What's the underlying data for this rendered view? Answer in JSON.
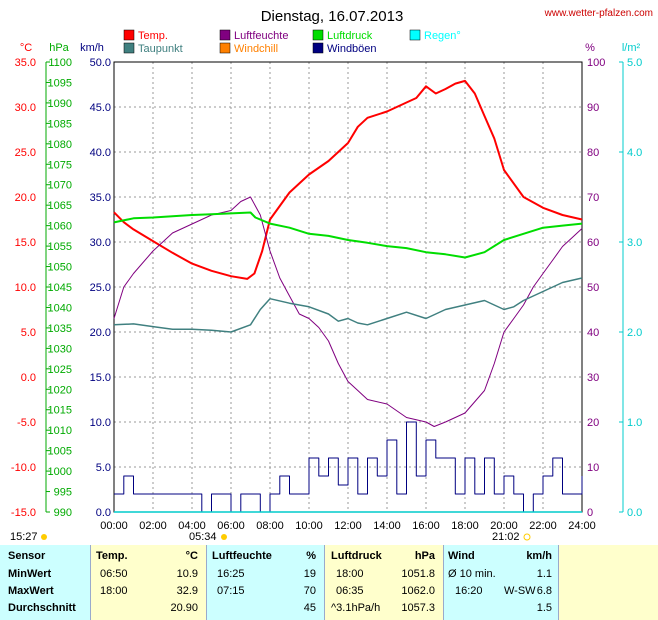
{
  "header": {
    "title": "Dienstag, 16.07.2013",
    "site": "www.wetter-pfalzen.com"
  },
  "axis_units": {
    "temp": "°C",
    "pressure": "hPa",
    "wind": "km/h",
    "humidity": "%",
    "rain": "l/m²"
  },
  "legend": [
    {
      "label": "Temp.",
      "color": "#ff0000"
    },
    {
      "label": "Luftfeuchte",
      "color": "#800080"
    },
    {
      "label": "Luftdruck",
      "color": "#00dd00"
    },
    {
      "label": "Regen°",
      "color": "#00ffff"
    },
    {
      "label": "Taupunkt",
      "color": "#408080"
    },
    {
      "label": "Windchill",
      "color": "#ff8000"
    },
    {
      "label": "Windböen",
      "color": "#000080"
    }
  ],
  "colors": {
    "temp": "#ff0000",
    "pressure": "#00dd00",
    "wind": "#000080",
    "humidity": "#800080",
    "dewpoint": "#408080",
    "rain": "#00cccc",
    "sun": "#ffcc00"
  },
  "sun": {
    "sunrise": "05:34",
    "sunset": "21:02",
    "day_length": "15:27"
  },
  "chart_data": {
    "type": "line",
    "title": "Dienstag, 16.07.2013",
    "grid": true,
    "legend_position": "top",
    "x_ticks": [
      "00:00",
      "02:00",
      "04:00",
      "06:00",
      "08:00",
      "10:00",
      "12:00",
      "14:00",
      "16:00",
      "18:00",
      "20:00",
      "22:00",
      "24:00"
    ],
    "xlim": [
      0,
      24
    ],
    "axes": {
      "temp": {
        "unit": "°C",
        "range": [
          -15,
          35
        ],
        "ticks": [
          "35.0",
          "30.0",
          "25.0",
          "20.0",
          "15.0",
          "10.0",
          "5.0",
          "0.0",
          "-5.0",
          "-10.0",
          "-15.0"
        ]
      },
      "pressure": {
        "unit": "hPa",
        "range": [
          990,
          1100
        ],
        "ticks": [
          "1100",
          "1095",
          "1090",
          "1085",
          "1080",
          "1075",
          "1070",
          "1065",
          "1060",
          "1055",
          "1050",
          "1045",
          "1040",
          "1035",
          "1030",
          "1025",
          "1020",
          "1015",
          "1010",
          "1005",
          "1000",
          "995",
          "990"
        ]
      },
      "wind": {
        "unit": "km/h",
        "range": [
          0,
          50
        ],
        "ticks": [
          "50.0",
          "45.0",
          "40.0",
          "35.0",
          "30.0",
          "25.0",
          "20.0",
          "15.0",
          "10.0",
          "5.0",
          "0.0"
        ]
      },
      "humidity": {
        "unit": "%",
        "range": [
          0,
          100
        ],
        "ticks": [
          "100",
          "90",
          "80",
          "70",
          "60",
          "50",
          "40",
          "30",
          "20",
          "10",
          "0"
        ]
      },
      "rain": {
        "unit": "l/m²",
        "range": [
          0,
          5
        ],
        "ticks": [
          "5.0",
          "4.0",
          "3.0",
          "2.0",
          "1.0",
          "0.0"
        ]
      }
    },
    "series": [
      {
        "name": "Temp.",
        "axis": "temp",
        "x": [
          0,
          0.5,
          1,
          2,
          3,
          4,
          5,
          6,
          6.83,
          7.2,
          7.6,
          8,
          9,
          10,
          11,
          12,
          12.5,
          13,
          14,
          15,
          15.5,
          16,
          16.5,
          17,
          17.5,
          18,
          18.5,
          19,
          19.5,
          20,
          21,
          22,
          23,
          24
        ],
        "y": [
          18.3,
          17.2,
          16.4,
          15.1,
          13.8,
          12.6,
          11.8,
          11.2,
          10.9,
          11.5,
          14.0,
          17.5,
          20.5,
          22.5,
          24.0,
          26.0,
          27.8,
          28.8,
          29.5,
          30.5,
          31.0,
          32.3,
          31.5,
          32.0,
          32.6,
          32.9,
          31.5,
          29.0,
          26.5,
          23.0,
          20.0,
          18.8,
          18.0,
          17.5
        ]
      },
      {
        "name": "Luftfeuchte",
        "axis": "humidity",
        "x": [
          0,
          0.5,
          1,
          2,
          3,
          4,
          5,
          6,
          6.5,
          7,
          7.5,
          8,
          8.5,
          9,
          9.5,
          10,
          10.5,
          11,
          11.5,
          12,
          12.5,
          13,
          14,
          15,
          16,
          16.42,
          17,
          18,
          19,
          19.5,
          20,
          20.5,
          21,
          21.5,
          22,
          22.5,
          23,
          23.5,
          24
        ],
        "y": [
          43,
          50,
          53,
          58,
          62,
          64,
          66,
          67,
          69,
          70,
          66,
          58,
          52,
          48,
          44,
          43,
          41,
          38,
          33,
          29,
          27,
          25,
          24,
          21,
          20,
          19,
          20,
          22,
          27,
          33,
          40,
          43,
          46,
          50,
          53,
          56,
          59,
          61,
          63
        ]
      },
      {
        "name": "Luftdruck",
        "axis": "pressure",
        "x": [
          0,
          1,
          2,
          3,
          4,
          5,
          6,
          7,
          7.25,
          8,
          9,
          10,
          11,
          12,
          13,
          14,
          15,
          16,
          17,
          18,
          19,
          20,
          21,
          22,
          23,
          24
        ],
        "y": [
          1060.8,
          1061.8,
          1062.0,
          1062.3,
          1062.6,
          1062.8,
          1063.0,
          1063.2,
          1062.0,
          1060.5,
          1059.5,
          1058.0,
          1057.5,
          1056.5,
          1055.8,
          1055.0,
          1054.5,
          1053.5,
          1053.0,
          1052.2,
          1053.5,
          1056.5,
          1058.0,
          1059.5,
          1060.0,
          1060.5
        ]
      },
      {
        "name": "Taupunkt",
        "axis": "temp",
        "x": [
          0,
          1,
          2,
          3,
          4,
          5,
          6,
          7,
          7.5,
          8,
          9,
          10,
          11,
          11.5,
          12,
          12.5,
          13,
          14,
          15,
          16,
          17,
          18,
          19,
          20,
          20.5,
          21,
          22,
          23,
          24
        ],
        "y": [
          5.8,
          5.9,
          5.6,
          5.3,
          5.3,
          5.2,
          5.0,
          5.8,
          7.5,
          8.7,
          8.2,
          7.8,
          7.0,
          6.2,
          6.5,
          6.0,
          5.8,
          6.5,
          7.2,
          6.5,
          7.5,
          8.0,
          8.5,
          7.5,
          7.8,
          8.5,
          9.5,
          10.5,
          11.0
        ]
      },
      {
        "name": "Windböen",
        "axis": "wind",
        "x": [
          0,
          0.5,
          1,
          1.5,
          2,
          2.5,
          3,
          3.5,
          4,
          4.5,
          5,
          5.5,
          6,
          6.5,
          7,
          7.5,
          8,
          8.5,
          9,
          9.5,
          10,
          10.5,
          11,
          11.5,
          12,
          12.5,
          13,
          13.5,
          14,
          14.5,
          15,
          15.5,
          16,
          16.5,
          17,
          17.5,
          18,
          18.5,
          19,
          19.5,
          20,
          20.5,
          21,
          21.5,
          22,
          22.5,
          23,
          23.5,
          24
        ],
        "y": [
          2,
          4,
          2,
          2,
          2,
          2,
          2,
          2,
          2,
          0,
          2,
          2,
          0,
          2,
          2,
          0,
          2,
          4,
          2,
          2,
          6,
          4,
          6,
          3,
          6,
          2,
          6,
          4,
          8,
          2,
          10,
          4,
          8,
          6,
          6,
          2,
          6,
          2,
          6,
          2,
          4,
          2,
          0,
          2,
          4,
          6,
          2,
          2,
          4
        ]
      },
      {
        "name": "Regen°",
        "axis": "rain",
        "x": [
          0,
          24
        ],
        "y": [
          0,
          0
        ]
      }
    ]
  },
  "table": {
    "headers": {
      "sensor": "Sensor",
      "temp": "Temp.",
      "temp_unit": "°C",
      "hum": "Luftfeuchte",
      "hum_unit": "%",
      "press": "Luftdruck",
      "press_unit": "hPa",
      "wind": "Wind",
      "wind_unit": "km/h"
    },
    "rows": [
      {
        "label": "MinWert",
        "temp_time": "06:50",
        "temp_val": "10.9",
        "hum_time": "16:25",
        "hum_val": "19",
        "press_time": "18:00",
        "press_val": "1051.8",
        "wind_label": "Ø 10 min.",
        "wind_dir": "",
        "wind_val": "1.1"
      },
      {
        "label": "MaxWert",
        "temp_time": "18:00",
        "temp_val": "32.9",
        "hum_time": "07:15",
        "hum_val": "70",
        "press_time": "06:35",
        "press_val": "1062.0",
        "wind_label": "16:20",
        "wind_dir": "W-SW",
        "wind_val": "6.8"
      },
      {
        "label": "Durchschnitt",
        "temp_time": "",
        "temp_val": "20.90",
        "hum_time": "",
        "hum_val": "45",
        "press_time": "^3.1hPa/h",
        "press_val": "1057.3",
        "wind_label": "",
        "wind_dir": "",
        "wind_val": "1.5"
      }
    ]
  }
}
